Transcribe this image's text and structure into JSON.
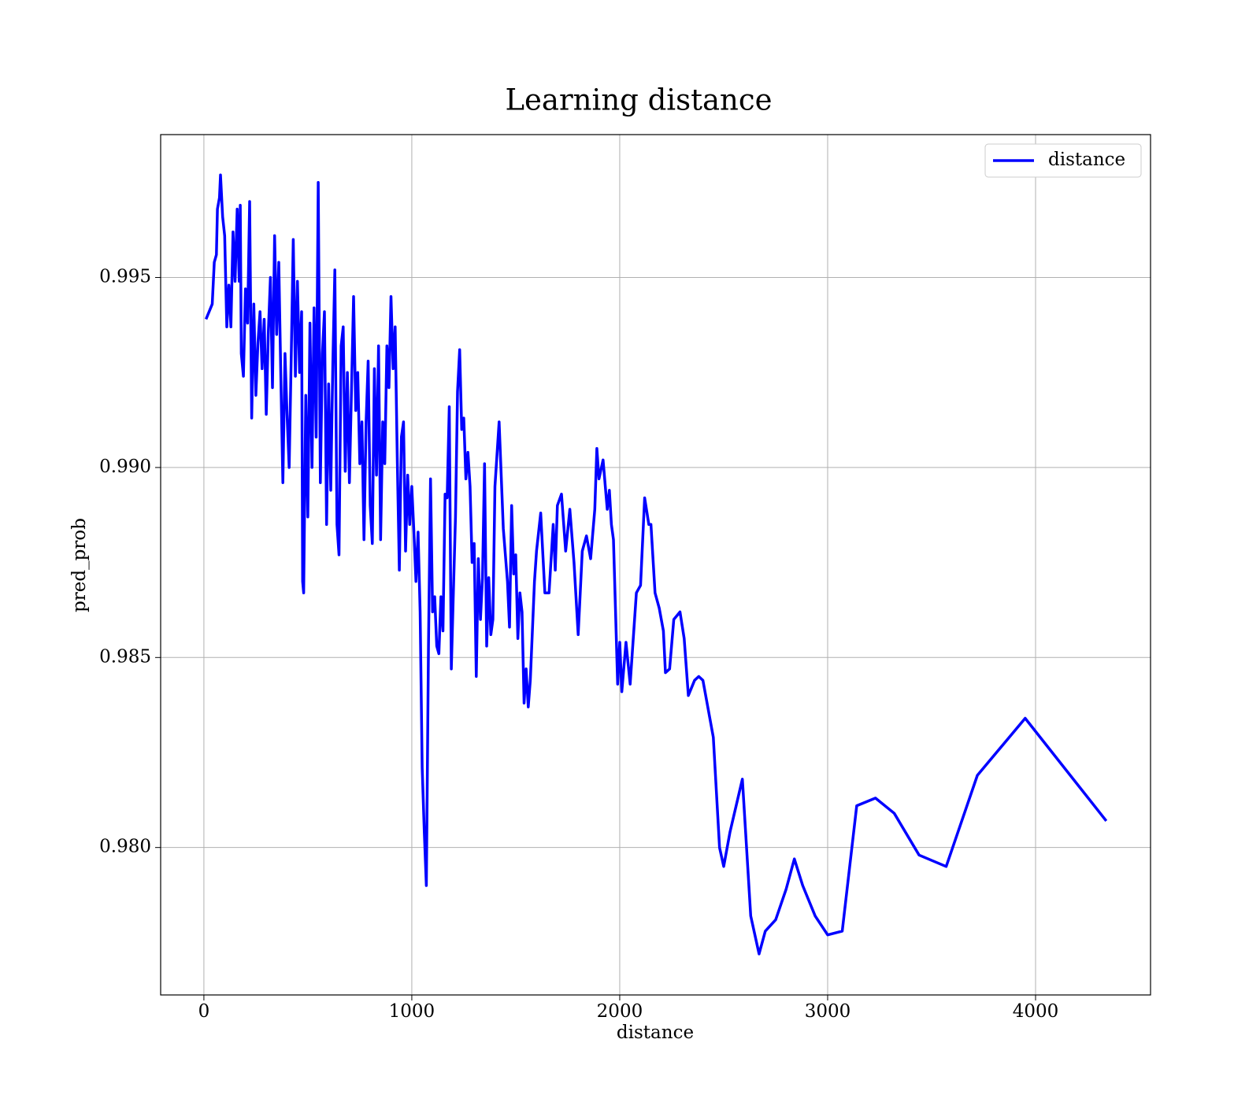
{
  "chart_data": {
    "type": "line",
    "title": "Learning distance",
    "xlabel": "distance",
    "ylabel": "pred_prob",
    "xlim": [
      -208,
      4553
    ],
    "ylim": [
      0.97612,
      0.99876
    ],
    "xticks": [
      0,
      1000,
      2000,
      3000,
      4000
    ],
    "yticks": [
      {
        "value": 0.98,
        "label": "0.980"
      },
      {
        "value": 0.985,
        "label": "0.985"
      },
      {
        "value": 0.99,
        "label": "0.990"
      },
      {
        "value": 0.995,
        "label": "0.995"
      }
    ],
    "grid": true,
    "legend": "upper right",
    "x": [
      10,
      40,
      50,
      60,
      65,
      75,
      80,
      90,
      100,
      110,
      120,
      130,
      140,
      150,
      160,
      170,
      175,
      180,
      190,
      200,
      210,
      220,
      230,
      240,
      250,
      260,
      270,
      280,
      290,
      300,
      310,
      320,
      330,
      340,
      350,
      360,
      370,
      380,
      390,
      400,
      410,
      420,
      430,
      440,
      450,
      460,
      470,
      475,
      480,
      490,
      500,
      510,
      520,
      530,
      540,
      550,
      560,
      570,
      580,
      590,
      600,
      610,
      620,
      630,
      640,
      650,
      660,
      670,
      680,
      690,
      700,
      710,
      720,
      730,
      740,
      750,
      760,
      770,
      780,
      790,
      800,
      810,
      820,
      830,
      840,
      850,
      860,
      870,
      880,
      890,
      900,
      910,
      920,
      930,
      940,
      950,
      960,
      970,
      980,
      990,
      1000,
      1010,
      1020,
      1030,
      1040,
      1050,
      1060,
      1070,
      1080,
      1090,
      1100,
      1110,
      1120,
      1130,
      1140,
      1150,
      1160,
      1170,
      1180,
      1190,
      1200,
      1210,
      1220,
      1230,
      1240,
      1250,
      1260,
      1270,
      1280,
      1290,
      1300,
      1310,
      1320,
      1330,
      1340,
      1350,
      1360,
      1370,
      1380,
      1390,
      1400,
      1420,
      1440,
      1460,
      1470,
      1480,
      1490,
      1500,
      1510,
      1520,
      1530,
      1540,
      1550,
      1560,
      1570,
      1590,
      1600,
      1620,
      1640,
      1660,
      1680,
      1690,
      1700,
      1720,
      1740,
      1760,
      1780,
      1800,
      1820,
      1840,
      1860,
      1880,
      1890,
      1900,
      1920,
      1940,
      1950,
      1960,
      1970,
      1990,
      2000,
      2010,
      2030,
      2050,
      2080,
      2100,
      2120,
      2140,
      2150,
      2170,
      2190,
      2210,
      2220,
      2240,
      2260,
      2290,
      2310,
      2330,
      2360,
      2380,
      2400,
      2450,
      2480,
      2500,
      2530,
      2590,
      2630,
      2670,
      2700,
      2750,
      2800,
      2840,
      2880,
      2940,
      3000,
      3070,
      3140,
      3230,
      3320,
      3440,
      3570,
      3720,
      3950,
      4340
    ],
    "series": [
      {
        "name": "distance",
        "color": "#0000ff",
        "values": [
          0.9939,
          0.9943,
          0.9954,
          0.9956,
          0.9968,
          0.9971,
          0.9977,
          0.9966,
          0.9961,
          0.9937,
          0.9948,
          0.9937,
          0.9962,
          0.9949,
          0.9968,
          0.9949,
          0.9969,
          0.993,
          0.9924,
          0.9947,
          0.9938,
          0.997,
          0.9913,
          0.9943,
          0.9919,
          0.9933,
          0.9941,
          0.9926,
          0.9939,
          0.9914,
          0.9936,
          0.995,
          0.9921,
          0.9961,
          0.9935,
          0.9954,
          0.9924,
          0.9896,
          0.993,
          0.9914,
          0.99,
          0.9929,
          0.996,
          0.9924,
          0.9949,
          0.9925,
          0.9941,
          0.987,
          0.9867,
          0.9919,
          0.9887,
          0.9938,
          0.99,
          0.9942,
          0.9908,
          0.9975,
          0.9896,
          0.993,
          0.9941,
          0.9885,
          0.9922,
          0.9894,
          0.9927,
          0.9952,
          0.9885,
          0.9877,
          0.9932,
          0.9937,
          0.9899,
          0.9925,
          0.9896,
          0.9921,
          0.9945,
          0.9915,
          0.9925,
          0.9901,
          0.9912,
          0.9881,
          0.9912,
          0.9928,
          0.989,
          0.988,
          0.9926,
          0.9898,
          0.9932,
          0.9881,
          0.9912,
          0.9901,
          0.9932,
          0.9921,
          0.9945,
          0.9926,
          0.9937,
          0.9902,
          0.9873,
          0.9908,
          0.9912,
          0.9878,
          0.9898,
          0.9885,
          0.9895,
          0.9883,
          0.987,
          0.9883,
          0.9862,
          0.9821,
          0.9804,
          0.979,
          0.9853,
          0.9897,
          0.9862,
          0.9866,
          0.9853,
          0.9851,
          0.9866,
          0.9857,
          0.9893,
          0.9892,
          0.9916,
          0.9847,
          0.9867,
          0.9887,
          0.992,
          0.9931,
          0.991,
          0.9913,
          0.9897,
          0.9904,
          0.9895,
          0.9875,
          0.988,
          0.9845,
          0.9876,
          0.986,
          0.9871,
          0.9901,
          0.9853,
          0.9871,
          0.9856,
          0.986,
          0.9895,
          0.9912,
          0.9884,
          0.987,
          0.9858,
          0.989,
          0.9872,
          0.9877,
          0.9855,
          0.9867,
          0.9862,
          0.9838,
          0.9847,
          0.9837,
          0.9844,
          0.987,
          0.9878,
          0.9888,
          0.9867,
          0.9867,
          0.9885,
          0.9873,
          0.989,
          0.9893,
          0.9878,
          0.9889,
          0.9875,
          0.9856,
          0.9878,
          0.9882,
          0.9876,
          0.9889,
          0.9905,
          0.9897,
          0.9902,
          0.9889,
          0.9894,
          0.9885,
          0.9881,
          0.9843,
          0.9854,
          0.9841,
          0.9854,
          0.9843,
          0.9867,
          0.9869,
          0.9892,
          0.9885,
          0.9885,
          0.9867,
          0.9863,
          0.9857,
          0.9846,
          0.9847,
          0.986,
          0.9862,
          0.9855,
          0.984,
          0.9844,
          0.9845,
          0.9844,
          0.9829,
          0.98,
          0.9795,
          0.9804,
          0.9818,
          0.9782,
          0.9772,
          0.9778,
          0.9781,
          0.9789,
          0.9797,
          0.979,
          0.9782,
          0.9777,
          0.9778,
          0.9811,
          0.9813,
          0.9809,
          0.9798,
          0.9795,
          0.9819,
          0.9834,
          0.9807
        ]
      }
    ]
  }
}
